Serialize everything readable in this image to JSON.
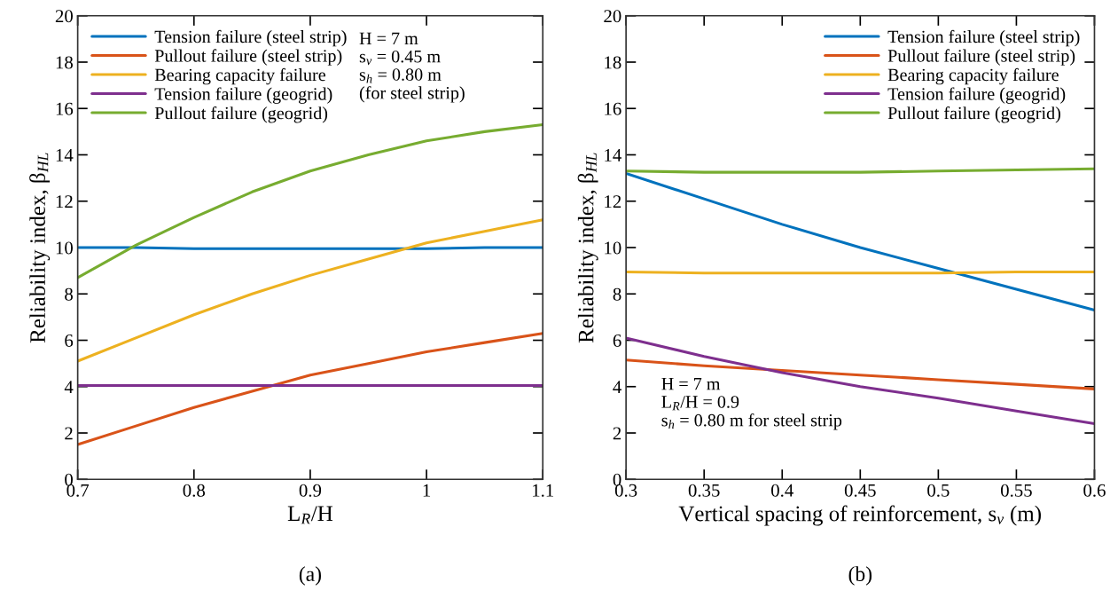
{
  "chart_data": [
    {
      "type": "line",
      "title": "(a)",
      "xlabel": "L$_{R}$/H",
      "ylabel": "Reliability index, β$_{HL}$",
      "x": [
        0.7,
        0.75,
        0.8,
        0.85,
        0.9,
        0.95,
        1.0,
        1.05,
        1.1
      ],
      "series": [
        {
          "name": "Tension failure (steel strip)",
          "color": "#0072bd",
          "values": [
            10.0,
            10.0,
            9.95,
            9.95,
            9.95,
            9.95,
            9.95,
            10.0,
            10.0
          ]
        },
        {
          "name": "Pullout failure (steel strip)",
          "color": "#d95319",
          "values": [
            1.5,
            2.3,
            3.1,
            3.8,
            4.5,
            5.0,
            5.5,
            5.9,
            6.3
          ]
        },
        {
          "name": "Bearing capacity failure",
          "color": "#edb120",
          "values": [
            5.1,
            6.1,
            7.1,
            8.0,
            8.8,
            9.5,
            10.2,
            10.7,
            11.2
          ]
        },
        {
          "name": "Tension failure (geogrid)",
          "color": "#7e2f8e",
          "values": [
            4.05,
            4.05,
            4.05,
            4.05,
            4.05,
            4.05,
            4.05,
            4.05,
            4.05
          ]
        },
        {
          "name": "Pullout failure (geogrid)",
          "color": "#77ac30",
          "values": [
            8.7,
            10.1,
            11.3,
            12.4,
            13.3,
            14.0,
            14.6,
            15.0,
            15.3
          ]
        }
      ],
      "annotations": [
        "H = 7 m",
        "s$_{v}$ = 0.45 m",
        "s$_{h}$ = 0.80 m",
        "(for steel strip)"
      ],
      "xlim": [
        0.7,
        1.1
      ],
      "xticks": [
        0.7,
        0.8,
        0.9,
        1,
        1.1
      ],
      "ylim": [
        0,
        20
      ],
      "yticks": [
        0,
        2,
        4,
        6,
        8,
        10,
        12,
        14,
        16,
        18,
        20
      ],
      "grid": false,
      "legend": "top left",
      "marker": "none",
      "line_style": "solid"
    },
    {
      "type": "line",
      "title": "(b)",
      "xlabel": "Vertical spacing of reinforcement, s$_{v}$ (m)",
      "ylabel": "Reliability index, β$_{HL}$",
      "x": [
        0.3,
        0.35,
        0.4,
        0.45,
        0.5,
        0.55,
        0.6
      ],
      "series": [
        {
          "name": "Tension failure (steel strip)",
          "color": "#0072bd",
          "values": [
            13.2,
            12.1,
            11.0,
            10.0,
            9.1,
            8.2,
            7.3
          ]
        },
        {
          "name": "Pullout failure (steel strip)",
          "color": "#d95319",
          "values": [
            5.15,
            4.9,
            4.7,
            4.5,
            4.3,
            4.1,
            3.9
          ]
        },
        {
          "name": "Bearing capacity failure",
          "color": "#edb120",
          "values": [
            8.95,
            8.9,
            8.9,
            8.9,
            8.9,
            8.95,
            8.95
          ]
        },
        {
          "name": "Tension failure (geogrid)",
          "color": "#7e2f8e",
          "values": [
            6.1,
            5.3,
            4.6,
            4.0,
            3.5,
            2.95,
            2.4
          ]
        },
        {
          "name": "Pullout failure (geogrid)",
          "color": "#77ac30",
          "values": [
            13.3,
            13.25,
            13.25,
            13.25,
            13.3,
            13.35,
            13.4
          ]
        }
      ],
      "annotations": [
        "H = 7 m",
        "L$_{R}$/H = 0.9",
        "s$_{h}$ = 0.80 m for steel strip"
      ],
      "xlim": [
        0.3,
        0.6
      ],
      "xticks": [
        0.3,
        0.35,
        0.4,
        0.45,
        0.5,
        0.55,
        0.6
      ],
      "ylim": [
        0,
        20
      ],
      "yticks": [
        0,
        2,
        4,
        6,
        8,
        10,
        12,
        14,
        16,
        18,
        20
      ],
      "grid": false,
      "legend": "top right",
      "marker": "none",
      "line_style": "solid"
    }
  ]
}
